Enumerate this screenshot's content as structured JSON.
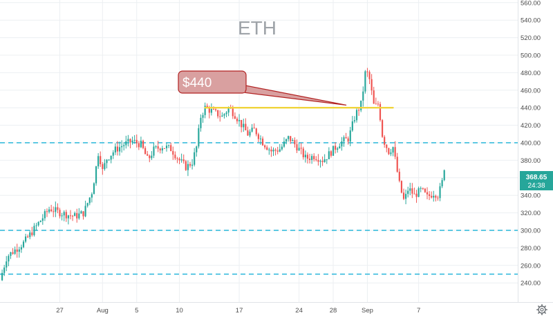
{
  "chart_data": {
    "type": "candlestick",
    "title": "ETH",
    "y_range": [
      230,
      563
    ],
    "y_ticks": [
      "560.00",
      "540.00",
      "520.00",
      "500.00",
      "480.00",
      "460.00",
      "440.00",
      "420.00",
      "400.00",
      "380.00",
      "360.00",
      "340.00",
      "320.00",
      "300.00",
      "280.00",
      "260.00",
      "240.00"
    ],
    "x_range_days": [
      0,
      60.6
    ],
    "x_ticks": [
      {
        "label": "27",
        "day": 7
      },
      {
        "label": "Aug",
        "day": 12
      },
      {
        "label": "5",
        "day": 16
      },
      {
        "label": "10",
        "day": 21
      },
      {
        "label": "17",
        "day": 28
      },
      {
        "label": "24",
        "day": 35
      },
      {
        "label": "28",
        "day": 39
      },
      {
        "label": "Sep",
        "day": 43
      },
      {
        "label": "7",
        "day": 49
      }
    ],
    "price_path": [
      {
        "day": 0.0,
        "price": 243
      },
      {
        "day": 0.8,
        "price": 270
      },
      {
        "day": 1.8,
        "price": 278
      },
      {
        "day": 2.8,
        "price": 286
      },
      {
        "day": 3.8,
        "price": 299
      },
      {
        "day": 4.8,
        "price": 312
      },
      {
        "day": 5.8,
        "price": 325
      },
      {
        "day": 6.8,
        "price": 321
      },
      {
        "day": 7.8,
        "price": 318
      },
      {
        "day": 8.8,
        "price": 316
      },
      {
        "day": 9.8,
        "price": 320
      },
      {
        "day": 10.8,
        "price": 345
      },
      {
        "day": 11.3,
        "price": 375
      },
      {
        "day": 11.6,
        "price": 395
      },
      {
        "day": 11.9,
        "price": 365
      },
      {
        "day": 12.5,
        "price": 382
      },
      {
        "day": 13.5,
        "price": 392
      },
      {
        "day": 14.5,
        "price": 398
      },
      {
        "day": 15.5,
        "price": 402
      },
      {
        "day": 16.5,
        "price": 398
      },
      {
        "day": 17.3,
        "price": 380
      },
      {
        "day": 18.0,
        "price": 392
      },
      {
        "day": 19.0,
        "price": 396
      },
      {
        "day": 20.0,
        "price": 393
      },
      {
        "day": 21.0,
        "price": 380
      },
      {
        "day": 21.8,
        "price": 372
      },
      {
        "day": 22.5,
        "price": 378
      },
      {
        "day": 23.0,
        "price": 395
      },
      {
        "day": 23.5,
        "price": 430
      },
      {
        "day": 24.0,
        "price": 440
      },
      {
        "day": 25.0,
        "price": 435
      },
      {
        "day": 26.0,
        "price": 430
      },
      {
        "day": 26.8,
        "price": 440
      },
      {
        "day": 27.5,
        "price": 432
      },
      {
        "day": 28.3,
        "price": 420
      },
      {
        "day": 29.0,
        "price": 410
      },
      {
        "day": 29.8,
        "price": 415
      },
      {
        "day": 30.8,
        "price": 400
      },
      {
        "day": 31.8,
        "price": 390
      },
      {
        "day": 32.8,
        "price": 393
      },
      {
        "day": 33.8,
        "price": 406
      },
      {
        "day": 34.8,
        "price": 395
      },
      {
        "day": 35.8,
        "price": 382
      },
      {
        "day": 36.8,
        "price": 385
      },
      {
        "day": 37.8,
        "price": 380
      },
      {
        "day": 38.8,
        "price": 390
      },
      {
        "day": 39.8,
        "price": 400
      },
      {
        "day": 40.8,
        "price": 405
      },
      {
        "day": 41.6,
        "price": 432
      },
      {
        "day": 42.3,
        "price": 445
      },
      {
        "day": 42.8,
        "price": 483
      },
      {
        "day": 43.2,
        "price": 475
      },
      {
        "day": 43.8,
        "price": 440
      },
      {
        "day": 44.3,
        "price": 445
      },
      {
        "day": 44.8,
        "price": 405
      },
      {
        "day": 45.5,
        "price": 390
      },
      {
        "day": 46.0,
        "price": 395
      },
      {
        "day": 46.8,
        "price": 350
      },
      {
        "day": 47.3,
        "price": 333
      },
      {
        "day": 47.8,
        "price": 348
      },
      {
        "day": 48.5,
        "price": 340
      },
      {
        "day": 49.3,
        "price": 346
      },
      {
        "day": 50.0,
        "price": 338
      },
      {
        "day": 50.8,
        "price": 343
      },
      {
        "day": 51.3,
        "price": 340
      },
      {
        "day": 51.9,
        "price": 360
      },
      {
        "day": 52.2,
        "price": 368.65
      }
    ],
    "horizontal_lines": [
      {
        "price": 400,
        "style": "dashed",
        "color": "#26b5d9"
      },
      {
        "price": 300,
        "style": "dashed",
        "color": "#26b5d9"
      },
      {
        "price": 250,
        "style": "dashed",
        "color": "#26b5d9"
      }
    ],
    "resistance_line": {
      "price": 440,
      "from_day": 24.0,
      "to_day": 46.0,
      "color": "#f0d43a"
    },
    "callout": {
      "text": "$440",
      "points_to_day": 40.5,
      "points_to_price": 443
    },
    "last_price": {
      "value": "368.65",
      "countdown": "24:38",
      "color": "#26a69a"
    },
    "colors": {
      "up": "#26a69a",
      "down": "#ef5350",
      "grid": "#eceff2",
      "axis_text": "#4a4a4a",
      "title": "#9ea3a8",
      "callout_fill": "#d9a0a0",
      "callout_stroke": "#b22222"
    },
    "icons": {
      "settings": "gear-icon"
    }
  }
}
